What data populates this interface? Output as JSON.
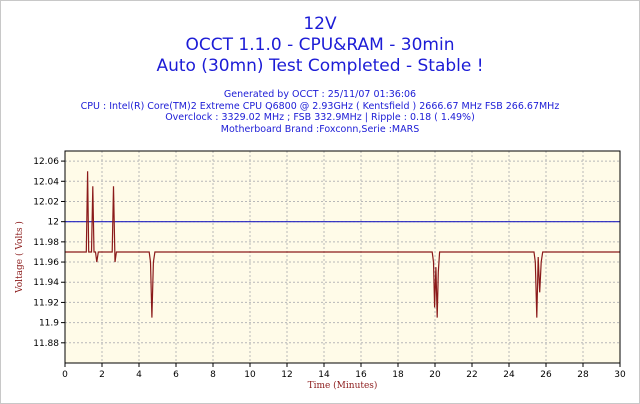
{
  "header": {
    "line1": "12V",
    "line2": "OCCT 1.1.0 - CPU&RAM - 30min",
    "line3": "Auto (30mn) Test Completed - Stable !"
  },
  "info": {
    "generated": "Generated by OCCT : 25/11/07 01:36:06",
    "cpu": "CPU : Intel(R) Core(TM)2 Extreme CPU Q6800  @ 2.93GHz ( Kentsfield ) 2666.67 MHz FSB 266.67MHz",
    "overclock": "Overclock : 3329.02 MHz ; FSB 332.9MHz | Ripple : 0.18 ( 1.49%)",
    "motherboard": "Motherboard Brand :Foxconn,Serie :MARS"
  },
  "colors": {
    "plot_background": "#fffbe8",
    "grid": "#b8b8b8",
    "reference_line": "#2020c0",
    "series_line": "#8b1a1a",
    "text_blue": "#1c1cd6"
  },
  "chart_data": {
    "type": "line",
    "xlabel": "Time (Minutes)",
    "ylabel": "Voltage ( Volts )",
    "xlim": [
      0,
      30
    ],
    "ylim": [
      11.86,
      12.07
    ],
    "x_ticks": [
      0,
      2,
      4,
      6,
      8,
      10,
      12,
      14,
      16,
      18,
      20,
      22,
      24,
      26,
      28,
      30
    ],
    "y_ticks": [
      11.88,
      11.9,
      11.92,
      11.94,
      11.96,
      11.98,
      12.0,
      12.02,
      12.04,
      12.06
    ],
    "y_tick_labels": [
      "11.88",
      "11.9",
      "11.92",
      "11.94",
      "11.96",
      "11.98",
      "12",
      "12.02",
      "12.04",
      "12.06"
    ],
    "grid": true,
    "reference_line": 12.0,
    "series": [
      {
        "x": [
          0.0,
          1.15,
          1.22,
          1.28,
          1.36,
          1.43,
          1.5,
          1.57,
          1.65,
          1.72,
          1.8,
          1.88,
          2.55,
          2.62,
          2.7,
          2.78,
          2.87,
          4.55,
          4.62,
          4.7,
          4.78,
          4.86,
          4.95,
          19.85,
          19.92,
          19.98,
          20.05,
          20.12,
          20.18,
          20.25,
          20.33,
          25.35,
          25.42,
          25.5,
          25.58,
          25.66,
          25.74,
          25.82,
          25.9,
          30.0
        ],
        "y": [
          11.97,
          11.97,
          12.05,
          11.97,
          11.97,
          11.97,
          12.035,
          11.97,
          11.97,
          11.96,
          11.97,
          11.97,
          11.97,
          12.035,
          11.96,
          11.97,
          11.97,
          11.97,
          11.96,
          11.905,
          11.96,
          11.97,
          11.97,
          11.97,
          11.96,
          11.915,
          11.955,
          11.905,
          11.95,
          11.97,
          11.97,
          11.97,
          11.96,
          11.905,
          11.965,
          11.93,
          11.96,
          11.97,
          11.97,
          11.97
        ]
      }
    ]
  }
}
